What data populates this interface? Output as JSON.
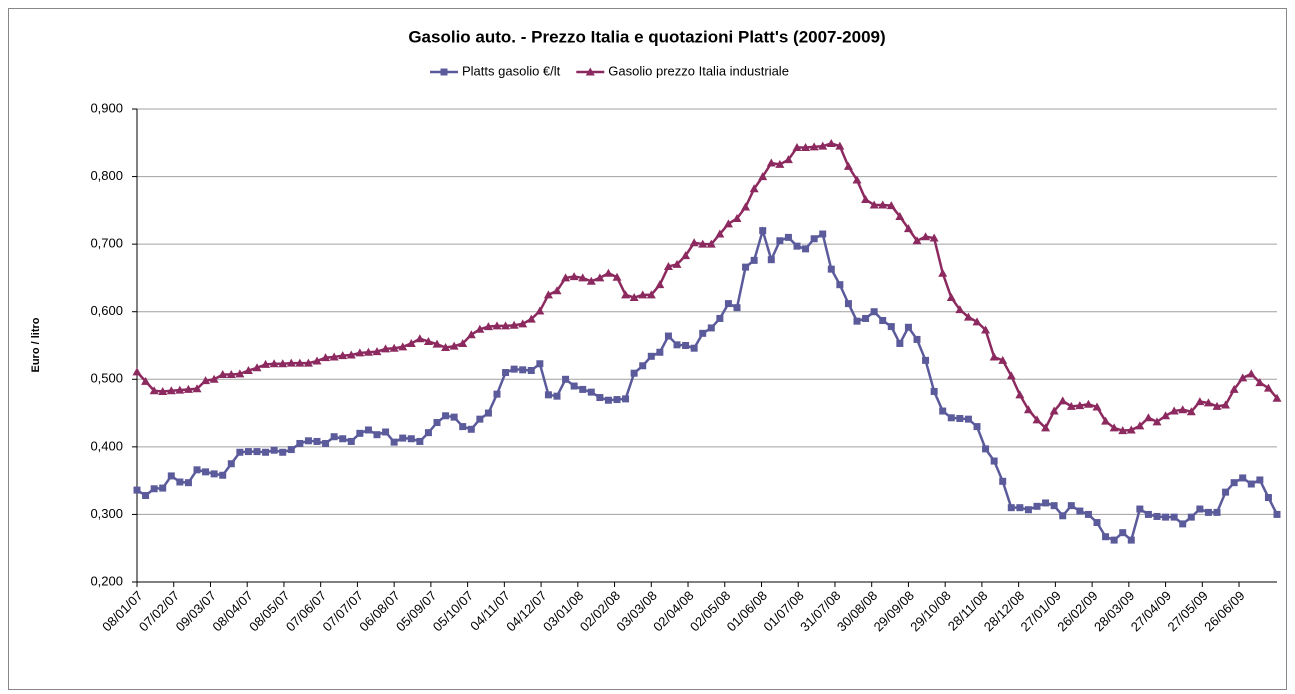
{
  "chart_data": {
    "type": "line",
    "title": "Gasolio auto. - Prezzo Italia e quotazioni Platt's (2007-2009)",
    "y_label": "Euro / litro",
    "x": [
      "08/01/07",
      "15/01/07",
      "22/01/07",
      "29/01/07",
      "05/02/07",
      "12/02/07",
      "19/02/07",
      "26/02/07",
      "05/03/07",
      "12/03/07",
      "19/03/07",
      "26/03/07",
      "02/04/07",
      "09/04/07",
      "16/04/07",
      "23/04/07",
      "30/04/07",
      "07/05/07",
      "14/05/07",
      "21/05/07",
      "28/05/07",
      "04/06/07",
      "11/06/07",
      "18/06/07",
      "25/06/07",
      "02/07/07",
      "09/07/07",
      "16/07/07",
      "23/07/07",
      "30/07/07",
      "06/08/07",
      "13/08/07",
      "20/08/07",
      "27/08/07",
      "03/09/07",
      "10/09/07",
      "17/09/07",
      "24/09/07",
      "01/10/07",
      "08/10/07",
      "15/10/07",
      "22/10/07",
      "29/10/07",
      "05/11/07",
      "12/11/07",
      "19/11/07",
      "26/11/07",
      "03/12/07",
      "10/12/07",
      "17/12/07",
      "24/12/07",
      "31/12/07",
      "07/01/08",
      "14/01/08",
      "21/01/08",
      "28/01/08",
      "04/02/08",
      "11/02/08",
      "18/02/08",
      "25/02/08",
      "03/03/08",
      "10/03/08",
      "17/03/08",
      "24/03/08",
      "31/03/08",
      "07/04/08",
      "14/04/08",
      "21/04/08",
      "28/04/08",
      "05/05/08",
      "12/05/08",
      "19/05/08",
      "26/05/08",
      "02/06/08",
      "09/06/08",
      "16/06/08",
      "23/06/08",
      "30/06/08",
      "07/07/08",
      "14/07/08",
      "21/07/08",
      "28/07/08",
      "04/08/08",
      "11/08/08",
      "18/08/08",
      "25/08/08",
      "01/09/08",
      "08/09/08",
      "15/09/08",
      "22/09/08",
      "29/09/08",
      "06/10/08",
      "13/10/08",
      "20/10/08",
      "27/10/08",
      "03/11/08",
      "10/11/08",
      "17/11/08",
      "24/11/08",
      "01/12/08",
      "08/12/08",
      "15/12/08",
      "22/12/08",
      "29/12/08",
      "05/01/09",
      "12/01/09",
      "19/01/09",
      "26/01/09",
      "02/02/09",
      "09/02/09",
      "16/02/09",
      "23/02/09",
      "02/03/09",
      "09/03/09",
      "16/03/09",
      "23/03/09",
      "30/03/09",
      "06/04/09",
      "13/04/09",
      "20/04/09",
      "27/04/09",
      "04/05/09",
      "11/05/09",
      "18/05/09",
      "25/05/09",
      "01/06/09",
      "08/06/09",
      "15/06/09",
      "22/06/09",
      "29/06/09",
      "06/07/09",
      "13/07/09",
      "20/07/09",
      "27/07/09"
    ],
    "series": [
      {
        "name": "Platts gasolio €/lt",
        "color": "#5b5b9c",
        "marker": "square",
        "values": [
          0.336,
          0.328,
          0.338,
          0.339,
          0.357,
          0.348,
          0.347,
          0.366,
          0.363,
          0.36,
          0.358,
          0.375,
          0.392,
          0.393,
          0.393,
          0.392,
          0.395,
          0.392,
          0.396,
          0.405,
          0.409,
          0.408,
          0.405,
          0.415,
          0.412,
          0.408,
          0.42,
          0.425,
          0.418,
          0.422,
          0.407,
          0.413,
          0.412,
          0.408,
          0.421,
          0.436,
          0.446,
          0.444,
          0.43,
          0.426,
          0.441,
          0.45,
          0.478,
          0.51,
          0.515,
          0.514,
          0.513,
          0.523,
          0.477,
          0.475,
          0.5,
          0.49,
          0.485,
          0.481,
          0.473,
          0.469,
          0.47,
          0.471,
          0.509,
          0.52,
          0.534,
          0.54,
          0.564,
          0.551,
          0.55,
          0.546,
          0.568,
          0.576,
          0.59,
          0.612,
          0.606,
          0.666,
          0.676,
          0.72,
          0.677,
          0.705,
          0.71,
          0.697,
          0.693,
          0.708,
          0.715,
          0.663,
          0.64,
          0.612,
          0.586,
          0.59,
          0.6,
          0.587,
          0.578,
          0.553,
          0.577,
          0.559,
          0.528,
          0.482,
          0.453,
          0.443,
          0.442,
          0.441,
          0.43,
          0.397,
          0.379,
          0.349,
          0.31,
          0.31,
          0.307,
          0.312,
          0.317,
          0.313,
          0.298,
          0.313,
          0.305,
          0.3,
          0.288,
          0.267,
          0.262,
          0.273,
          0.262,
          0.308,
          0.3,
          0.297,
          0.296,
          0.296,
          0.286,
          0.296,
          0.308,
          0.303,
          0.303,
          0.333,
          0.347,
          0.354,
          0.345,
          0.351,
          0.325,
          0.3
        ]
      },
      {
        "name": "Gasolio prezzo Italia industriale",
        "color": "#8c2a60",
        "marker": "triangle",
        "values": [
          0.511,
          0.497,
          0.483,
          0.482,
          0.483,
          0.484,
          0.485,
          0.486,
          0.498,
          0.5,
          0.507,
          0.507,
          0.508,
          0.513,
          0.517,
          0.522,
          0.523,
          0.523,
          0.524,
          0.524,
          0.524,
          0.527,
          0.532,
          0.533,
          0.535,
          0.536,
          0.539,
          0.54,
          0.541,
          0.545,
          0.546,
          0.548,
          0.553,
          0.56,
          0.556,
          0.552,
          0.547,
          0.549,
          0.553,
          0.566,
          0.574,
          0.578,
          0.579,
          0.579,
          0.58,
          0.582,
          0.589,
          0.601,
          0.625,
          0.631,
          0.65,
          0.652,
          0.65,
          0.645,
          0.65,
          0.657,
          0.651,
          0.625,
          0.621,
          0.625,
          0.625,
          0.64,
          0.667,
          0.67,
          0.683,
          0.702,
          0.7,
          0.7,
          0.715,
          0.73,
          0.738,
          0.755,
          0.782,
          0.8,
          0.82,
          0.818,
          0.825,
          0.843,
          0.843,
          0.844,
          0.845,
          0.849,
          0.845,
          0.815,
          0.795,
          0.766,
          0.758,
          0.758,
          0.757,
          0.741,
          0.723,
          0.705,
          0.711,
          0.709,
          0.657,
          0.621,
          0.603,
          0.592,
          0.585,
          0.573,
          0.533,
          0.528,
          0.505,
          0.477,
          0.455,
          0.44,
          0.428,
          0.453,
          0.468,
          0.46,
          0.461,
          0.463,
          0.459,
          0.438,
          0.428,
          0.424,
          0.425,
          0.431,
          0.443,
          0.437,
          0.446,
          0.453,
          0.455,
          0.452,
          0.467,
          0.465,
          0.46,
          0.462,
          0.485,
          0.502,
          0.508,
          0.495,
          0.487,
          0.472
        ]
      }
    ],
    "xlim": [
      "08/01/07",
      "27/07/09"
    ],
    "xticks": [
      "08/01/07",
      "07/02/07",
      "09/03/07",
      "08/04/07",
      "08/05/07",
      "07/06/07",
      "07/07/07",
      "06/08/07",
      "05/09/07",
      "05/10/07",
      "04/11/07",
      "04/12/07",
      "03/01/08",
      "02/02/08",
      "03/03/08",
      "02/04/08",
      "02/05/08",
      "01/06/08",
      "01/07/08",
      "31/07/08",
      "30/08/08",
      "29/09/08",
      "29/10/08",
      "28/11/08",
      "28/12/08",
      "27/01/09",
      "26/02/09",
      "28/03/09",
      "27/04/09",
      "27/05/09",
      "26/06/09"
    ],
    "ylim": [
      0.2,
      0.9
    ],
    "yticks": [
      {
        "value": 0.2,
        "label": "0,200"
      },
      {
        "value": 0.3,
        "label": "0,300"
      },
      {
        "value": 0.4,
        "label": "0,400"
      },
      {
        "value": 0.5,
        "label": "0,500"
      },
      {
        "value": 0.6,
        "label": "0,600"
      },
      {
        "value": 0.7,
        "label": "0,700"
      },
      {
        "value": 0.8,
        "label": "0,800"
      },
      {
        "value": 0.9,
        "label": "0,900"
      }
    ],
    "grid": true,
    "legend": "top"
  }
}
